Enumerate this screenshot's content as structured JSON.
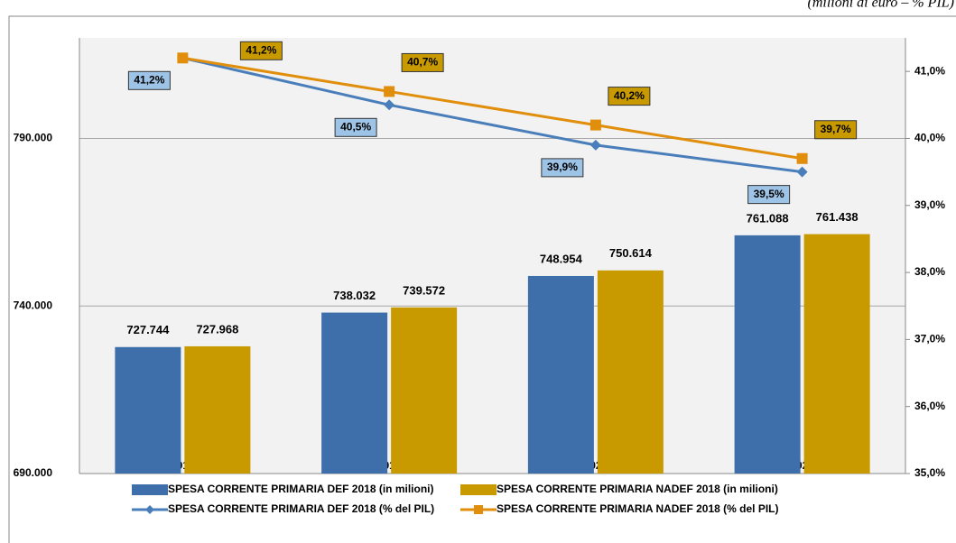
{
  "chart_data": {
    "type": "bar",
    "subtitle": "(milioni di euro – % PIL)",
    "categories": [
      "2018",
      "2019",
      "2020",
      "2021"
    ],
    "ylim": [
      690000,
      820000
    ],
    "yticks": [
      {
        "value": 690000,
        "label": "690.000"
      },
      {
        "value": 740000,
        "label": "740.000"
      },
      {
        "value": 790000,
        "label": "790.000"
      }
    ],
    "y2lim": [
      35,
      41.5
    ],
    "y2ticks": [
      {
        "value": 35,
        "label": "35,0%"
      },
      {
        "value": 36,
        "label": "36,0%"
      },
      {
        "value": 37,
        "label": "37,0%"
      },
      {
        "value": 38,
        "label": "38,0%"
      },
      {
        "value": 39,
        "label": "39,0%"
      },
      {
        "value": 40,
        "label": "40,0%"
      },
      {
        "value": 41,
        "label": "41,0%"
      }
    ],
    "grid": true,
    "series": [
      {
        "name": "SPESA CORRENTE PRIMARIA DEF 2018 (in milioni)",
        "type": "bar",
        "color": "#3f6fab",
        "values": [
          727744,
          738032,
          748954,
          761088
        ],
        "value_labels": [
          "727.744",
          "738.032",
          "748.954",
          "761.088"
        ]
      },
      {
        "name": "SPESA CORRENTE PRIMARIA NADEF 2018 (in milioni)",
        "type": "bar",
        "color": "#c89a00",
        "values": [
          727968,
          739572,
          750614,
          761438
        ],
        "value_labels": [
          "727.968",
          "739.572",
          "750.614",
          "761.438"
        ]
      },
      {
        "name": "SPESA CORRENTE PRIMARIA DEF 2018 (% del PIL)",
        "type": "line",
        "axis": "y2",
        "color": "#4a7ebb",
        "marker": "diamond",
        "label_color": "#9dc3e6",
        "values": [
          41.2,
          40.5,
          39.9,
          39.5
        ],
        "value_labels": [
          "41,2%",
          "40,5%",
          "39,9%",
          "39,5%"
        ]
      },
      {
        "name": "SPESA CORRENTE PRIMARIA NADEF 2018 (% del PIL)",
        "type": "line",
        "axis": "y2",
        "color": "#e08e0b",
        "marker": "square",
        "label_color": "#c89a00",
        "values": [
          41.2,
          40.7,
          40.2,
          39.7
        ],
        "value_labels": [
          "41,2%",
          "40,7%",
          "40,2%",
          "39,7%"
        ]
      }
    ]
  }
}
